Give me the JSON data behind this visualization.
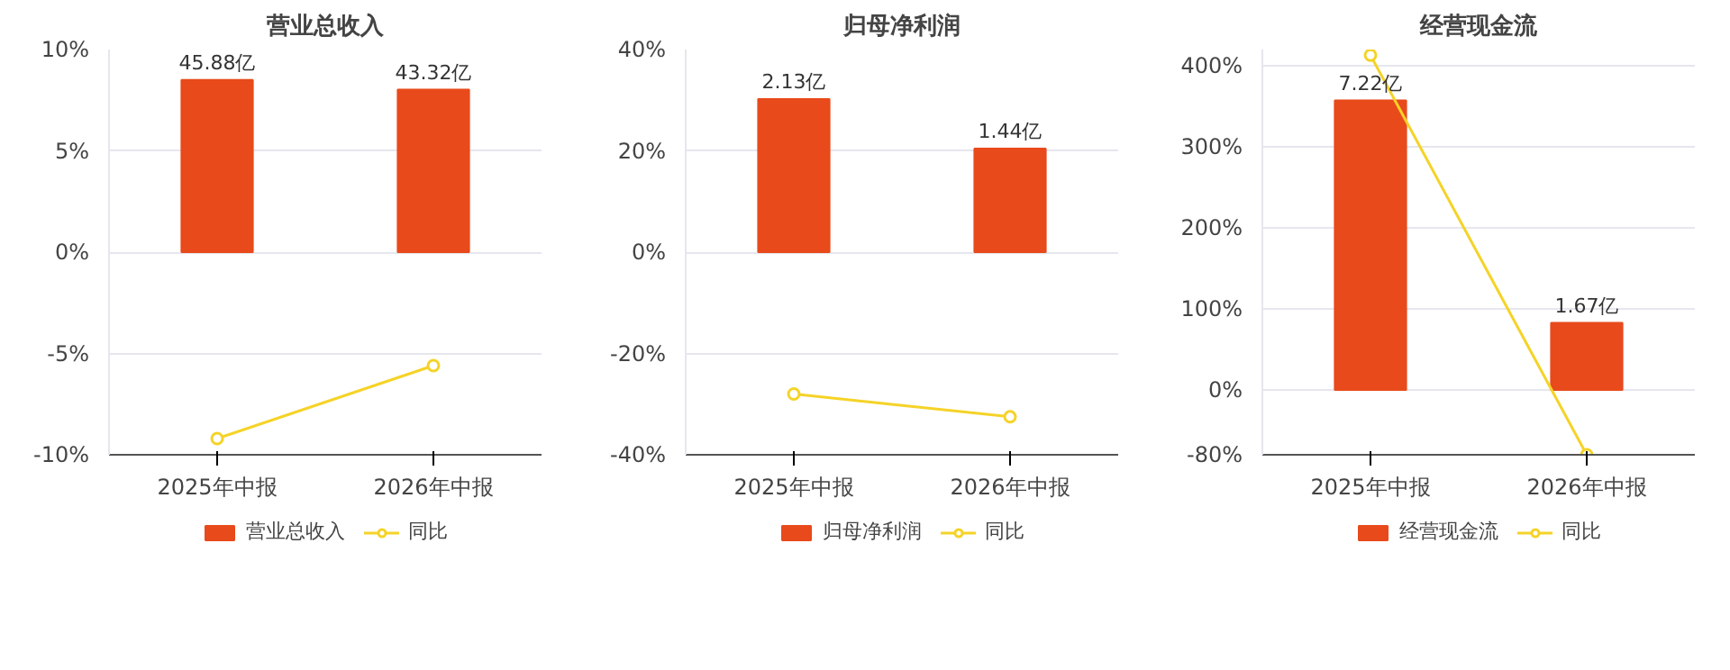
{
  "chart_data": [
    {
      "type": "bar",
      "title": "营业总收入",
      "categories": [
        "2025年中报",
        "2026年中报"
      ],
      "series": [
        {
          "name": "营业总收入",
          "axis": "y2",
          "color": "#e84a1b",
          "values": [
            45.88,
            43.32
          ],
          "value_labels": [
            "45.88亿",
            "43.32亿"
          ]
        },
        {
          "name": "同比",
          "type": "line",
          "color": "#f5d327",
          "values": [
            -9.2,
            -5.6
          ],
          "marker": "circle"
        }
      ],
      "ylim": [
        -10,
        10
      ],
      "yticks": [
        {
          "value": -10,
          "label": "-10%"
        },
        {
          "value": -5,
          "label": "-5%"
        },
        {
          "value": 0,
          "label": "0%"
        },
        {
          "value": 5,
          "label": "5%"
        },
        {
          "value": 10,
          "label": "10%"
        }
      ],
      "y2lim": [
        -54.0,
        54.0
      ],
      "grid": "y",
      "legend": "bottom"
    },
    {
      "type": "bar",
      "title": "归母净利润",
      "categories": [
        "2025年中报",
        "2026年中报"
      ],
      "series": [
        {
          "name": "归母净利润",
          "axis": "y2",
          "color": "#e84a1b",
          "values": [
            2.13,
            1.44
          ],
          "value_labels": [
            "2.13亿",
            "1.44亿"
          ]
        },
        {
          "name": "同比",
          "type": "line",
          "color": "#f5d327",
          "values": [
            -28,
            -32.5
          ],
          "marker": "circle"
        }
      ],
      "ylim": [
        -40,
        40
      ],
      "yticks": [
        {
          "value": -40,
          "label": "-40%"
        },
        {
          "value": -20,
          "label": "-20%"
        },
        {
          "value": 0,
          "label": "0%"
        },
        {
          "value": 20,
          "label": "20%"
        },
        {
          "value": 40,
          "label": "40%"
        }
      ],
      "y2lim": [
        -2.82,
        2.82
      ],
      "grid": "y",
      "legend": "bottom"
    },
    {
      "type": "bar",
      "title": "经营现金流",
      "categories": [
        "2025年中报",
        "2026年中报"
      ],
      "series": [
        {
          "name": "经营现金流",
          "axis": "y2",
          "color": "#e84a1b",
          "values": [
            7.22,
            1.67
          ],
          "value_labels": [
            "7.22亿",
            "1.67亿"
          ]
        },
        {
          "name": "同比",
          "type": "line",
          "color": "#f5d327",
          "values": [
            413,
            -80
          ],
          "marker": "circle"
        }
      ],
      "ylim": [
        -80,
        420
      ],
      "yticks": [
        {
          "value": -80,
          "label": "-80%"
        },
        {
          "value": 0,
          "label": "0%"
        },
        {
          "value": 100,
          "label": "100%"
        },
        {
          "value": 200,
          "label": "200%"
        },
        {
          "value": 300,
          "label": "300%"
        },
        {
          "value": 400,
          "label": "400%"
        }
      ],
      "y2lim": [
        -1.62,
        8.49
      ],
      "grid": "y",
      "legend": "bottom"
    }
  ]
}
